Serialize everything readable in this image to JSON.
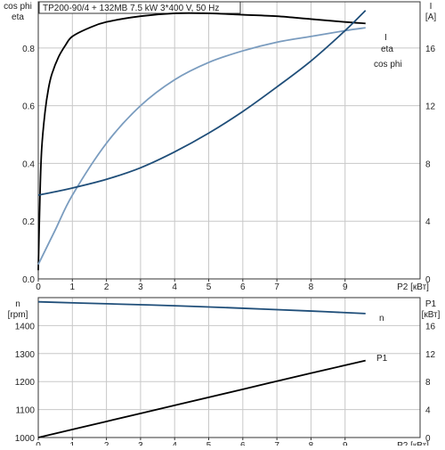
{
  "chart_data": [
    {
      "type": "line",
      "title": "TP200-90/4 + 132MB   7.5 kW   3*400 V, 50 Hz",
      "x": {
        "label": "P2 [кВт]",
        "ticks": [
          0,
          1,
          2,
          3,
          4,
          5,
          6,
          7,
          8,
          9
        ],
        "range": [
          0,
          11.2
        ]
      },
      "y_left": {
        "labels": [
          "cos phi",
          "eta"
        ],
        "ticks": [
          "0.0",
          "0.2",
          "0.4",
          "0.6",
          "0.8"
        ],
        "tick_values": [
          0,
          0.2,
          0.4,
          0.6,
          0.8
        ],
        "range": [
          0,
          0.96
        ]
      },
      "y_right": {
        "labels": [
          "I",
          "[A]"
        ],
        "ticks": [
          "0",
          "4",
          "8",
          "12",
          "16"
        ],
        "tick_values": [
          0,
          4,
          8,
          12,
          16
        ],
        "range": [
          0,
          19.2
        ]
      },
      "grid": true,
      "series": [
        {
          "name": "eta",
          "axis": "left",
          "color": "#000000",
          "x": [
            0,
            0.05,
            0.1,
            0.2,
            0.3,
            0.4,
            0.6,
            0.8,
            1.0,
            1.5,
            2.0,
            3.0,
            4.0,
            5.0,
            6.0,
            7.0,
            8.0,
            9.0,
            9.6
          ],
          "y": [
            0.03,
            0.29,
            0.45,
            0.58,
            0.66,
            0.71,
            0.77,
            0.81,
            0.84,
            0.87,
            0.89,
            0.91,
            0.92,
            0.92,
            0.915,
            0.91,
            0.9,
            0.89,
            0.885
          ]
        },
        {
          "name": "cos phi",
          "axis": "left",
          "color": "#7a9cbf",
          "x": [
            0,
            0.5,
            1.0,
            2.0,
            3.0,
            4.0,
            5.0,
            6.0,
            7.0,
            8.0,
            9.0,
            9.6
          ],
          "y": [
            0.05,
            0.17,
            0.29,
            0.47,
            0.6,
            0.69,
            0.75,
            0.79,
            0.82,
            0.84,
            0.86,
            0.87
          ]
        },
        {
          "name": "I",
          "axis": "right",
          "color": "#1f4e79",
          "x": [
            0,
            1.0,
            2.0,
            3.0,
            4.0,
            5.0,
            6.0,
            7.0,
            8.0,
            9.0,
            9.6
          ],
          "y": [
            5.8,
            6.3,
            6.9,
            7.7,
            8.8,
            10.1,
            11.6,
            13.3,
            15.1,
            17.2,
            18.6
          ]
        }
      ]
    },
    {
      "type": "line",
      "x": {
        "label": "P2 [кВт]",
        "ticks": [
          0,
          1,
          2,
          3,
          4,
          5,
          6,
          7,
          8,
          9
        ],
        "range": [
          0,
          11.2
        ]
      },
      "y_left": {
        "labels": [
          "n",
          "[rpm]"
        ],
        "ticks": [
          "1000",
          "1100",
          "1200",
          "1300",
          "1400"
        ],
        "tick_values": [
          1000,
          1100,
          1200,
          1300,
          1400
        ],
        "range": [
          1000,
          1500
        ]
      },
      "y_right": {
        "labels": [
          "P1",
          "[кВт]"
        ],
        "ticks": [
          "0",
          "4",
          "8",
          "12",
          "16"
        ],
        "tick_values": [
          0,
          4,
          8,
          12,
          16
        ],
        "range": [
          0,
          20
        ]
      },
      "grid": true,
      "series": [
        {
          "name": "n",
          "axis": "left",
          "color": "#1f4e79",
          "x": [
            0,
            2,
            4,
            6,
            8,
            9.6
          ],
          "y": [
            1485,
            1478,
            1471,
            1462,
            1452,
            1443
          ]
        },
        {
          "name": "P1",
          "axis": "right",
          "color": "#000000",
          "x": [
            0,
            2,
            4,
            6,
            8,
            9.6
          ],
          "y": [
            0,
            2.3,
            4.6,
            6.9,
            9.2,
            11.0
          ]
        }
      ]
    }
  ]
}
